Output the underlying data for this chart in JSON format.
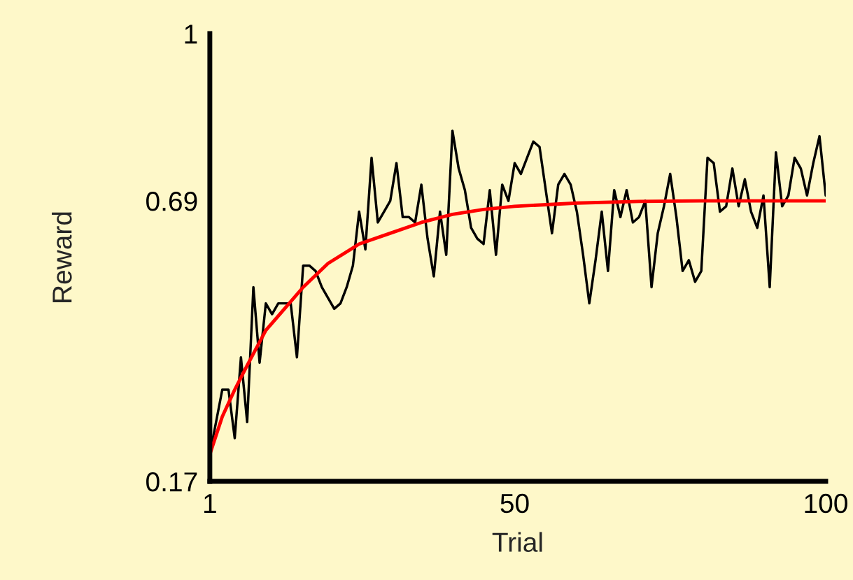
{
  "chart_data": {
    "type": "line",
    "xlabel": "Trial",
    "ylabel": "Reward",
    "xlim": [
      1,
      100
    ],
    "xticks": [
      1,
      50,
      100
    ],
    "ylim": [
      0.17,
      1
    ],
    "yticks": [
      0.17,
      0.69,
      1
    ],
    "grid": false,
    "legend": false,
    "marker": "none",
    "line_style": "solid",
    "series": [
      {
        "color": "#000000",
        "x": [
          1,
          2,
          3,
          4,
          5,
          6,
          7,
          8,
          9,
          10,
          11,
          12,
          13,
          14,
          15,
          16,
          17,
          18,
          19,
          20,
          21,
          22,
          23,
          24,
          25,
          26,
          27,
          28,
          29,
          30,
          31,
          32,
          33,
          34,
          35,
          36,
          37,
          38,
          39,
          40,
          41,
          42,
          43,
          44,
          45,
          46,
          47,
          48,
          49,
          50,
          51,
          52,
          53,
          54,
          55,
          56,
          57,
          58,
          59,
          60,
          61,
          62,
          63,
          64,
          65,
          66,
          67,
          68,
          69,
          70,
          71,
          72,
          73,
          74,
          75,
          76,
          77,
          78,
          79,
          80,
          81,
          82,
          83,
          84,
          85,
          86,
          87,
          88,
          89,
          90,
          91,
          92,
          93,
          94,
          95,
          96,
          97,
          98,
          99,
          100
        ],
        "values": [
          0.22,
          0.28,
          0.34,
          0.34,
          0.25,
          0.4,
          0.28,
          0.53,
          0.39,
          0.5,
          0.48,
          0.5,
          0.5,
          0.5,
          0.4,
          0.57,
          0.57,
          0.56,
          0.53,
          0.51,
          0.49,
          0.5,
          0.53,
          0.57,
          0.67,
          0.6,
          0.77,
          0.65,
          0.67,
          0.69,
          0.76,
          0.66,
          0.66,
          0.65,
          0.72,
          0.62,
          0.55,
          0.67,
          0.59,
          0.82,
          0.75,
          0.71,
          0.64,
          0.62,
          0.61,
          0.71,
          0.59,
          0.72,
          0.69,
          0.76,
          0.74,
          0.77,
          0.8,
          0.79,
          0.71,
          0.63,
          0.72,
          0.74,
          0.72,
          0.67,
          0.59,
          0.5,
          0.58,
          0.67,
          0.56,
          0.71,
          0.66,
          0.71,
          0.65,
          0.66,
          0.69,
          0.53,
          0.63,
          0.68,
          0.74,
          0.66,
          0.56,
          0.58,
          0.54,
          0.56,
          0.77,
          0.76,
          0.67,
          0.68,
          0.75,
          0.68,
          0.73,
          0.67,
          0.64,
          0.7,
          0.53,
          0.78,
          0.68,
          0.7,
          0.77,
          0.75,
          0.7,
          0.76,
          0.81,
          0.7
        ]
      },
      {
        "color": "#ff0000",
        "x": [
          1,
          3,
          5,
          7,
          10,
          13,
          16,
          20,
          25,
          30,
          35,
          40,
          45,
          50,
          60,
          70,
          80,
          100
        ],
        "values": [
          0.22,
          0.29,
          0.34,
          0.385,
          0.45,
          0.49,
          0.53,
          0.574,
          0.61,
          0.63,
          0.65,
          0.665,
          0.674,
          0.68,
          0.686,
          0.689,
          0.69,
          0.69
        ]
      }
    ]
  }
}
